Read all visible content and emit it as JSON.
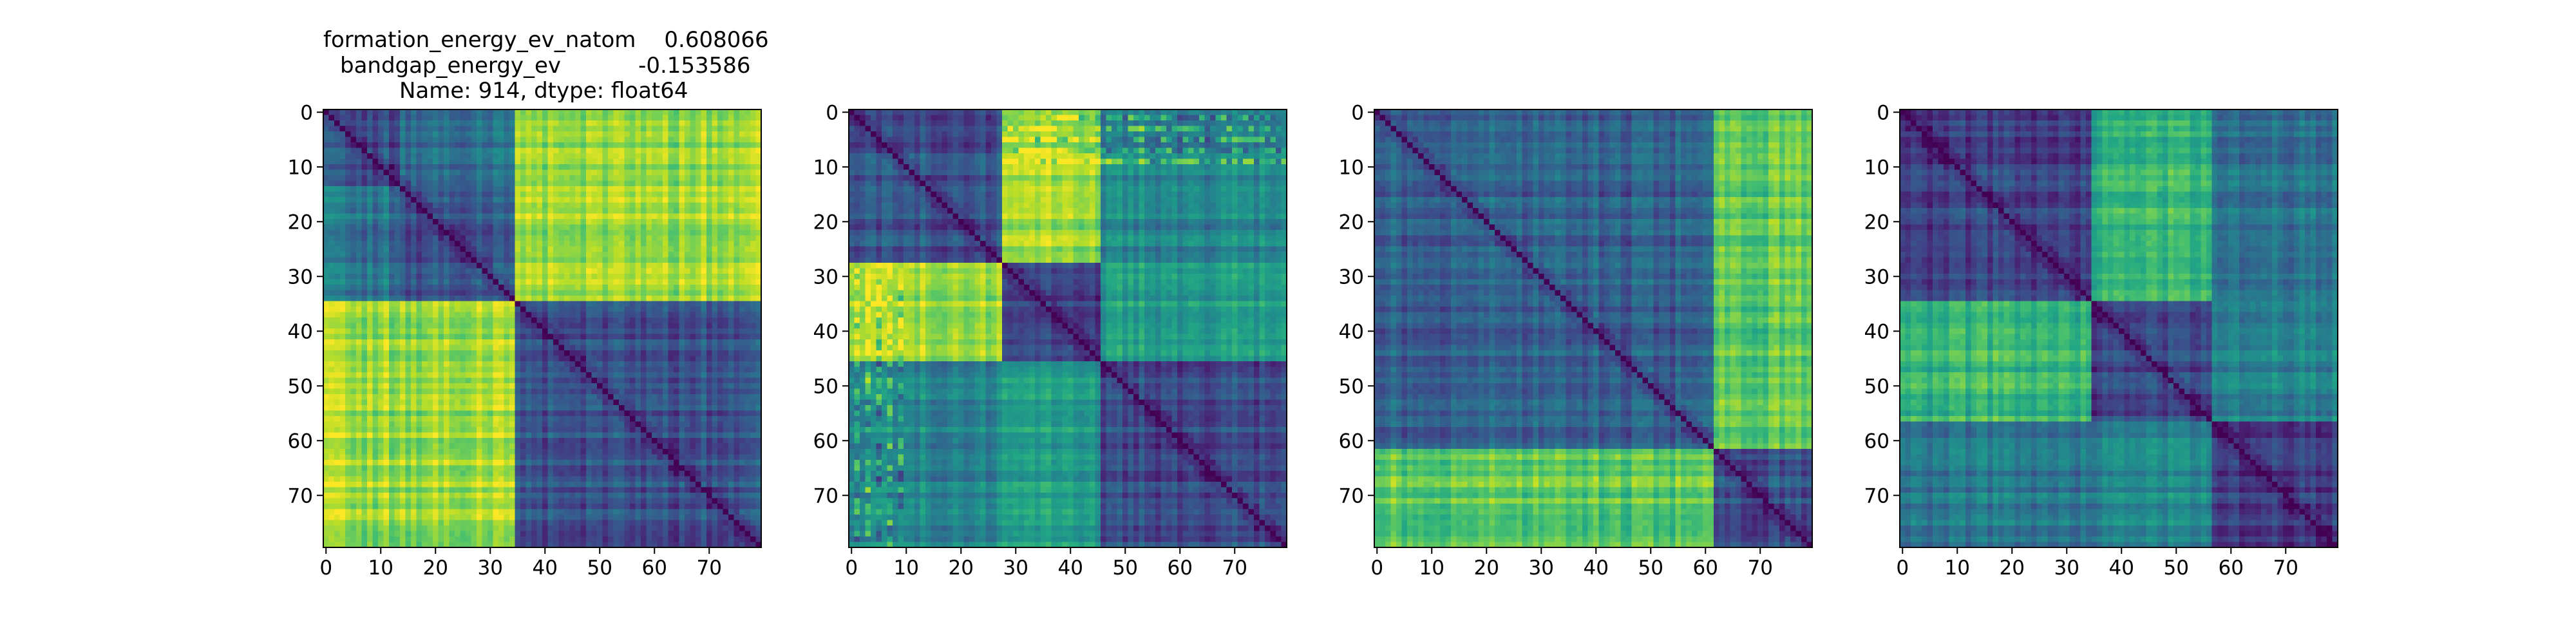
{
  "chart_data": [
    {
      "type": "heatmap",
      "title_lines": [
        {
          "label": "formation_energy_ev_natom",
          "value": "0.608066"
        },
        {
          "label": "bandgap_energy_ev",
          "value": "-0.153586"
        },
        {
          "text": "Name: 914, dtype: float64"
        }
      ],
      "size": 80,
      "colormap": "viridis",
      "blocks": [
        35,
        45
      ],
      "block_levels": [
        [
          0.25,
          0.85
        ],
        [
          0.85,
          0.25
        ]
      ],
      "inner_splits": [
        14
      ],
      "xticks": [
        0,
        10,
        20,
        30,
        40,
        50,
        60,
        70
      ],
      "yticks": [
        0,
        10,
        20,
        30,
        40,
        50,
        60,
        70
      ],
      "xlim": [
        0,
        79
      ],
      "ylim": [
        79,
        0
      ]
    },
    {
      "type": "heatmap",
      "size": 80,
      "colormap": "viridis",
      "blocks": [
        28,
        18,
        34
      ],
      "block_levels": [
        [
          0.25,
          0.85,
          0.45
        ],
        [
          0.85,
          0.2,
          0.55
        ],
        [
          0.45,
          0.55,
          0.22
        ]
      ],
      "stripe_cols": [
        1,
        3,
        5,
        7,
        9
      ],
      "xticks": [
        0,
        10,
        20,
        30,
        40,
        50,
        60,
        70
      ],
      "yticks": [
        0,
        10,
        20,
        30,
        40,
        50,
        60,
        70
      ],
      "xlim": [
        0,
        79
      ],
      "ylim": [
        79,
        0
      ]
    },
    {
      "type": "heatmap",
      "size": 80,
      "colormap": "viridis",
      "blocks": [
        62,
        18
      ],
      "block_levels": [
        [
          0.3,
          0.75
        ],
        [
          0.75,
          0.25
        ]
      ],
      "xticks": [
        0,
        10,
        20,
        30,
        40,
        50,
        60,
        70
      ],
      "yticks": [
        0,
        10,
        20,
        30,
        40,
        50,
        60,
        70
      ],
      "xlim": [
        0,
        79
      ],
      "ylim": [
        79,
        0
      ]
    },
    {
      "type": "heatmap",
      "size": 80,
      "colormap": "viridis",
      "blocks": [
        35,
        22,
        23
      ],
      "block_levels": [
        [
          0.2,
          0.65,
          0.4
        ],
        [
          0.65,
          0.2,
          0.45
        ],
        [
          0.4,
          0.45,
          0.2
        ]
      ],
      "xticks": [
        0,
        10,
        20,
        30,
        40,
        50,
        60,
        70
      ],
      "yticks": [
        0,
        10,
        20,
        30,
        40,
        50,
        60,
        70
      ],
      "xlim": [
        0,
        79
      ],
      "ylim": [
        79,
        0
      ]
    }
  ]
}
